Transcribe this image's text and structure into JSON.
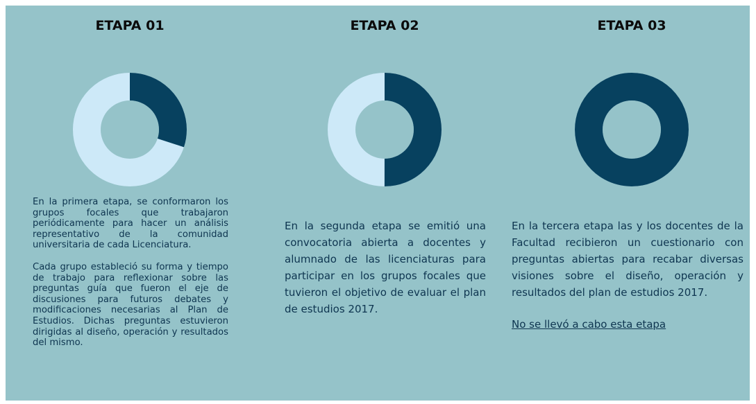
{
  "stages": [
    {
      "title": "ETAPA 01",
      "progress": 30,
      "paragraphs": [
        "En la primera etapa, se conformaron los grupos focales que trabajaron periódicamente para hacer un análisis representativo de la comunidad universitaria de cada Licenciatura.",
        "Cada grupo estableció su forma y tiempo de trabajo para reflexionar sobre las preguntas guía que fueron el eje de discusiones para futuros debates y modificaciones necesarias al Plan de Estudios. Dichas preguntas estuvieron dirigidas al diseño, operación y resultados del mismo."
      ]
    },
    {
      "title": "ETAPA 02",
      "progress": 50,
      "paragraphs": [
        "En la segunda etapa se emitió una convocatoria abierta a docentes y alumnado de las licenciaturas para participar en los grupos focales que tuvieron el objetivo de evaluar el plan de estudios 2017."
      ]
    },
    {
      "title": "ETAPA 03",
      "progress": 100,
      "paragraphs": [
        "En la tercera etapa las y los docentes de la Facultad recibieron un cuestionario con preguntas abiertas para recabar diversas visiones sobre el diseño, operación y resultados del plan de estudios 2017."
      ],
      "note": "No se llevó a cabo esta etapa"
    }
  ]
}
